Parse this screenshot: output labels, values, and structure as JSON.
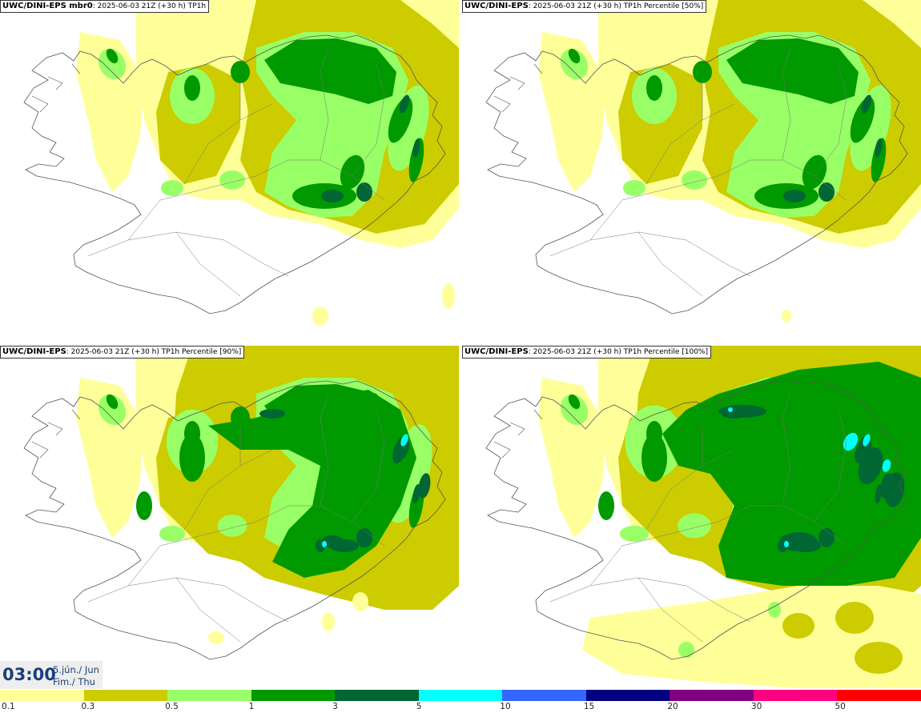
{
  "panels": [
    {
      "model": "UWC/DINI-EPS mbr0",
      "meta": ": 2025-06-03 21Z (+30 h)",
      "field": "TP1h"
    },
    {
      "model": "UWC/DINI-EPS",
      "meta": ": 2025-06-03 21Z (+30 h)",
      "field": "TP1h Percentile [50%]"
    },
    {
      "model": "UWC/DINI-EPS",
      "meta": ": 2025-06-03 21Z (+30 h)",
      "field": "TP1h Percentile [90%]"
    },
    {
      "model": "UWC/DINI-EPS",
      "meta": ": 2025-06-03 21Z (+30 h)",
      "field": "TP1h Percentile [100%]"
    }
  ],
  "time": {
    "hour": "03:00",
    "date": "5.jún./ Jun",
    "day": "Fim./ Thu"
  },
  "legend": {
    "labels": [
      "0.1",
      "0.3",
      "0.5",
      "1",
      "3",
      "5",
      "10",
      "15",
      "20",
      "30",
      "50"
    ],
    "colors": [
      "#ffff99",
      "#cccc00",
      "#99ff66",
      "#009900",
      "#006633",
      "#00ffff",
      "#3366ff",
      "#000080",
      "#800080",
      "#ff0080",
      "#ff0000"
    ]
  },
  "map_colors": {
    "light_yellow": "#ffff99",
    "olive": "#cccc00",
    "light_green": "#99ff66",
    "green": "#009900",
    "dark_green": "#006633",
    "cyan": "#00ffff"
  }
}
